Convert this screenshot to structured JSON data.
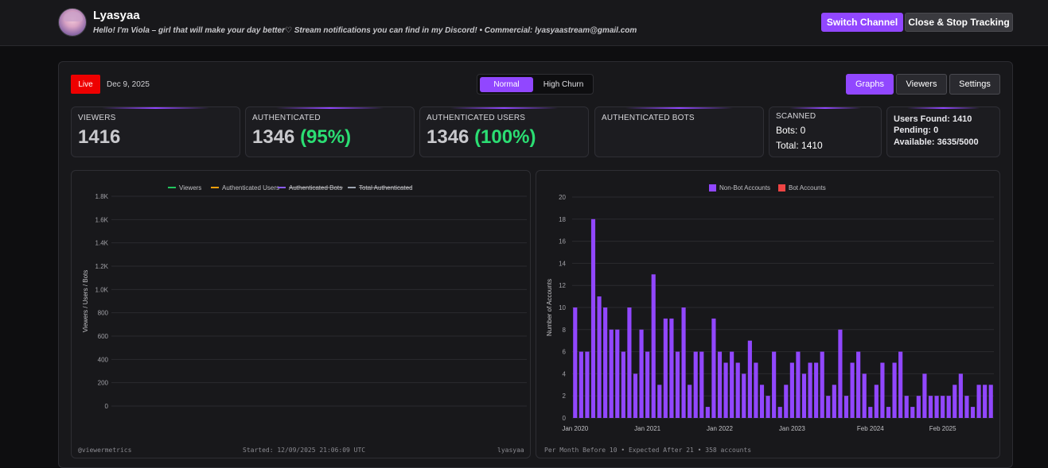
{
  "header": {
    "channel_name": "Lyasyaa",
    "description": "Hello! I'm Viola – girl that will make your day better♡ Stream notifications you can find in my Discord! • Commercial: lyasyaastream@gmail.com",
    "switch_label": "Switch Channel",
    "stop_label": "Close & Stop Tracking"
  },
  "status": {
    "live_label": "Live",
    "date": "Dec 9, 2025"
  },
  "modes": {
    "normal": "Normal",
    "high_churn": "High Churn",
    "active": "Normal"
  },
  "view_tabs": {
    "graphs": "Graphs",
    "viewers": "Viewers",
    "settings": "Settings",
    "active": "Graphs"
  },
  "stats": {
    "viewers_label": "VIEWERS",
    "viewers_value": "1416",
    "authenticated_label": "AUTHENTICATED",
    "authenticated_value": "1346",
    "authenticated_pct": "(95%)",
    "auth_users_label": "AUTHENTICATED USERS",
    "auth_users_value": "1346",
    "auth_users_pct": "(100%)",
    "auth_bots_label": "AUTHENTICATED BOTS",
    "scanned_label": "SCANNED",
    "scanned_bots": "Bots: 0",
    "scanned_total": "Total: 1410",
    "users_found": "Users Found: 1410",
    "pending": "Pending: 0",
    "available": "Available: 3635/5000"
  },
  "colors": {
    "accent": "#9147ff",
    "live": "#ee0000",
    "pct_green": "#2bde73",
    "viewers_series": "#22c55e",
    "auth_users_series": "#f59e0b",
    "auth_bots_series": "#8b5cf6",
    "total_auth_series": "#9ca3af",
    "bot_accounts": "#ef4444"
  },
  "left_footer": {
    "handle": "@viewermetrics",
    "started": "Started: 12/09/2025 21:06:09 UTC",
    "channel": "lyasyaa"
  },
  "right_footer": {
    "note": "Per Month Before 10 • Expected After 21 • 358 accounts"
  },
  "chart_data": [
    {
      "type": "line",
      "title": "",
      "ylabel": "Viewers / Users / Bots",
      "xlabel": "",
      "ylim": [
        0,
        1800
      ],
      "yticks": [
        "0",
        "200",
        "400",
        "600",
        "800",
        "1.0K",
        "1.2K",
        "1.4K",
        "1.6K",
        "1.8K"
      ],
      "grid": true,
      "legend_position": "top",
      "series": [
        {
          "name": "Viewers",
          "values": [],
          "hidden": false
        },
        {
          "name": "Authenticated Users",
          "values": [],
          "hidden": false
        },
        {
          "name": "Authenticated Bots",
          "values": [],
          "hidden": true
        },
        {
          "name": "Total Authenticated",
          "values": [],
          "hidden": true
        }
      ]
    },
    {
      "type": "bar",
      "title": "",
      "ylabel": "Number of Accounts",
      "xlabel": "",
      "ylim": [
        0,
        20
      ],
      "yticks": [
        "0",
        "2",
        "4",
        "6",
        "8",
        "10",
        "12",
        "14",
        "16",
        "18",
        "20"
      ],
      "xtick_labels": [
        {
          "label": "Jan 2020",
          "index": 0
        },
        {
          "label": "Jan 2021",
          "index": 12
        },
        {
          "label": "Jan 2022",
          "index": 24
        },
        {
          "label": "Jan 2023",
          "index": 36
        },
        {
          "label": "Feb 2024",
          "index": 49
        },
        {
          "label": "Feb 2025",
          "index": 61
        }
      ],
      "grid": true,
      "legend_position": "top",
      "series": [
        {
          "name": "Non-Bot Accounts",
          "values": [
            10,
            6,
            6,
            18,
            11,
            10,
            8,
            8,
            6,
            10,
            4,
            8,
            6,
            13,
            3,
            9,
            9,
            6,
            10,
            3,
            6,
            6,
            1,
            9,
            6,
            5,
            6,
            5,
            4,
            7,
            5,
            3,
            2,
            6,
            1,
            3,
            5,
            6,
            4,
            5,
            5,
            6,
            2,
            3,
            8,
            2,
            5,
            6,
            4,
            1,
            3,
            5,
            1,
            5,
            6,
            2,
            1,
            2,
            4,
            2,
            2,
            2,
            2,
            3,
            4,
            2,
            1,
            3,
            3,
            3
          ]
        },
        {
          "name": "Bot Accounts",
          "values": [
            0,
            0,
            0,
            0,
            0,
            0,
            0,
            0,
            0,
            0,
            0,
            0,
            0,
            0,
            0,
            0,
            0,
            0,
            0,
            0,
            0,
            0,
            0,
            0,
            0,
            0,
            0,
            0,
            0,
            0,
            0,
            0,
            0,
            0,
            0,
            0,
            0,
            0,
            0,
            0,
            0,
            0,
            0,
            0,
            0,
            0,
            0,
            0,
            0,
            0,
            0,
            0,
            0,
            0,
            0,
            0,
            0,
            0,
            0,
            0,
            0,
            0,
            0,
            0,
            0,
            0,
            0,
            0,
            0,
            0
          ]
        }
      ]
    }
  ]
}
